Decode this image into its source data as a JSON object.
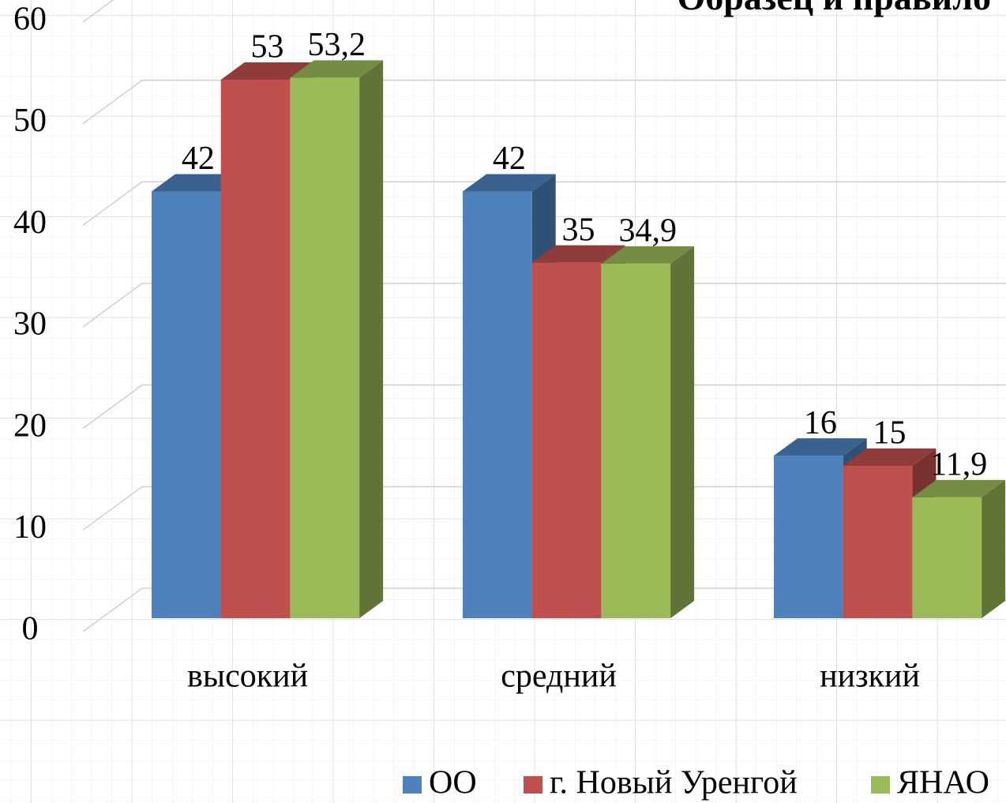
{
  "chart_data": {
    "type": "bar3d",
    "title": "Образец и правило",
    "categories": [
      "высокий",
      "средний",
      "низкий"
    ],
    "series": [
      {
        "name": "ОО",
        "color": "#4f81bd",
        "values": [
          42,
          42,
          16
        ]
      },
      {
        "name": "г. Новый Уренгой",
        "color": "#c0504d",
        "values": [
          53,
          35,
          15
        ]
      },
      {
        "name": "ЯНАО",
        "color": "#9bbb59",
        "values": [
          53.2,
          34.9,
          11.9
        ],
        "value_labels": [
          "53,2",
          "34,9",
          "11,9"
        ]
      }
    ],
    "ylim": [
      0,
      60
    ],
    "yticks": [
      0,
      10,
      20,
      30,
      40,
      50,
      60
    ],
    "grid": true,
    "legend": "bottom"
  }
}
